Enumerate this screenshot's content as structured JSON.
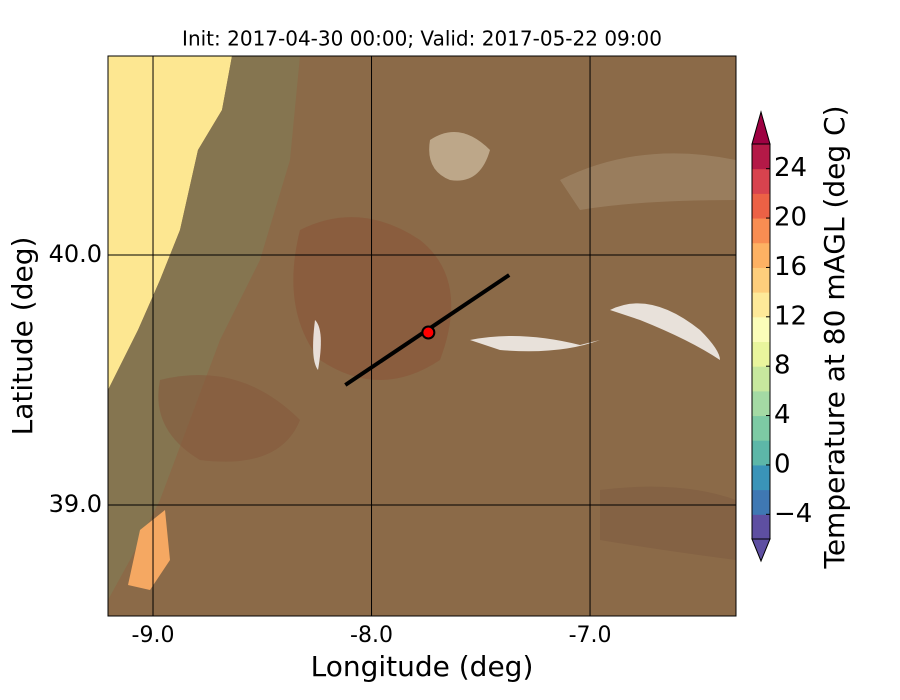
{
  "chart_data": {
    "type": "map",
    "title": "Init: 2017-04-30 00:00; Valid: 2017-05-22 09:00",
    "x_label": "Longitude (deg)",
    "y_label": "Latitude (deg)",
    "xlim": [
      -9.206,
      -6.332
    ],
    "ylim": [
      38.556,
      40.796
    ],
    "xticks": [
      {
        "value": -9,
        "label": "-9.0"
      },
      {
        "value": -8,
        "label": "-8.0"
      },
      {
        "value": -7,
        "label": "-7.0"
      }
    ],
    "yticks": [
      {
        "value": 39,
        "label": "39.0"
      },
      {
        "value": 40,
        "label": "40.0"
      }
    ],
    "grid": true,
    "path": {
      "x": [
        -8.12,
        -7.37
      ],
      "y": [
        39.48,
        39.92
      ],
      "color": "#000000"
    },
    "point": {
      "x": -7.74,
      "y": 39.69,
      "color": "#ff0000"
    },
    "colorbar": {
      "label": "Temperature at 80 mAGL (deg C)",
      "clim": [
        -6,
        26
      ],
      "ticks": [
        {
          "value": -4,
          "label": "−4"
        },
        0,
        4,
        8,
        12,
        16,
        20,
        24
      ],
      "colors": [
        "#5e4fa2",
        "#3f78b3",
        "#3a94b8",
        "#5db7a8",
        "#7dcaa4",
        "#a4daa4",
        "#c7e89e",
        "#e9f59d",
        "#fbfdb9",
        "#fee999",
        "#fece7c",
        "#fdb163",
        "#f88d52",
        "#ec6145",
        "#d8434e",
        "#b41947"
      ],
      "under_color": "#5e4fa2",
      "over_color": "#9e0142"
    }
  }
}
